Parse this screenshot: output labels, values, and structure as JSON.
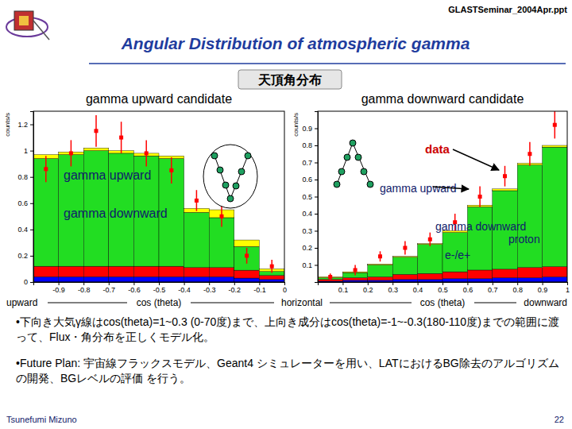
{
  "slide": {
    "file": "GLASTSeminar_2004Apr.ppt",
    "title": "Angular Distribution of atmospheric gamma",
    "tab": "天頂角分布",
    "axis_notes": [
      "upward",
      "horizontal",
      "downward"
    ],
    "bullets": [
      "•下向き大気γ線はcos(theta)=1~0.3 (0-70度)まで、上向き成分はcos(theta)=-1~-0.3(180-110度)までの範囲に渡って、Flux・角分布を正しくモデル化。",
      "•Future Plan: 宇宙線フラックスモデル、Geant4 シミュレーターを用い、LATにおけるBG除去のアルゴリズムの開発、BGレベルの評価 を行う。"
    ],
    "author": "Tsunefumi Mizuno",
    "page": 22
  },
  "chart_data": [
    {
      "type": "histogram",
      "title": "gamma upward candidate",
      "xlabel": "cos (theta)",
      "ylabel": "counts/s",
      "stacked": true,
      "grid": false,
      "bins": [
        -1,
        -0.9,
        -0.8,
        -0.7,
        -0.6,
        -0.5,
        -0.4,
        -0.3,
        -0.2,
        -0.1,
        0
      ],
      "xlim": [
        -1,
        0
      ],
      "xticks": [
        -0.9,
        -0.8,
        -0.7,
        -0.6,
        -0.5,
        -0.4,
        -0.3,
        -0.2,
        -0.1,
        0
      ],
      "ylim": [
        0,
        1.3
      ],
      "yticks": [
        0,
        0.2,
        0.4,
        0.6,
        0.8,
        1,
        1.2
      ],
      "series": [
        {
          "color": "#0000ff",
          "values": [
            0.04,
            0.04,
            0.04,
            0.04,
            0.04,
            0.04,
            0.04,
            0.04,
            0.03,
            0.02
          ]
        },
        {
          "color": "#ff0000",
          "values": [
            0.08,
            0.08,
            0.08,
            0.08,
            0.08,
            0.08,
            0.07,
            0.07,
            0.06,
            0.03
          ]
        },
        {
          "name": "gamma upward",
          "color": "#22dd22",
          "values": [
            0.82,
            0.85,
            0.88,
            0.86,
            0.84,
            0.82,
            0.42,
            0.38,
            0.18,
            0.03
          ]
        },
        {
          "name": "gamma downward",
          "color": "#ffff00",
          "values": [
            0.03,
            0.02,
            0.02,
            0.02,
            0.02,
            0.02,
            0.03,
            0.06,
            0.05,
            0.02
          ]
        }
      ],
      "points": {
        "color": "#ff0000",
        "marker": "square",
        "x": [
          -0.95,
          -0.85,
          -0.75,
          -0.65,
          -0.55,
          -0.45,
          -0.35,
          -0.25,
          -0.15,
          -0.05
        ],
        "values": [
          0.86,
          0.98,
          1.15,
          1.1,
          0.98,
          0.85,
          0.62,
          0.5,
          0.2,
          0.12
        ],
        "errors": [
          0.1,
          0.1,
          0.12,
          0.12,
          0.1,
          0.1,
          0.08,
          0.08,
          0.06,
          0.05
        ]
      }
    },
    {
      "type": "histogram",
      "title": "gamma downward candidate",
      "xlabel": "cos (theta)",
      "ylabel": "counts/s",
      "stacked": true,
      "grid": false,
      "bins": [
        0,
        0.1,
        0.2,
        0.3,
        0.4,
        0.5,
        0.6,
        0.7,
        0.8,
        0.9,
        1
      ],
      "xlim": [
        0,
        1
      ],
      "xticks": [
        0.1,
        0.2,
        0.3,
        0.4,
        0.5,
        0.6,
        0.7,
        0.8,
        0.9,
        1
      ],
      "ylim": [
        0,
        1
      ],
      "yticks": [
        0.1,
        0.2,
        0.3,
        0.4,
        0.5,
        0.6,
        0.7,
        0.8,
        0.9
      ],
      "series": [
        {
          "name": "proton",
          "color": "#0000ff",
          "values": [
            0.005,
            0.01,
            0.01,
            0.015,
            0.015,
            0.02,
            0.02,
            0.025,
            0.025,
            0.03
          ]
        },
        {
          "name": "e-/e+",
          "color": "#ff0000",
          "values": [
            0.01,
            0.015,
            0.02,
            0.03,
            0.035,
            0.04,
            0.05,
            0.05,
            0.06,
            0.06
          ]
        },
        {
          "name": "gamma downward",
          "color": "#22dd22",
          "values": [
            0.01,
            0.03,
            0.07,
            0.1,
            0.17,
            0.23,
            0.37,
            0.46,
            0.6,
            0.7
          ]
        },
        {
          "name": "gamma upward",
          "color": "#ffff00",
          "values": [
            0.005,
            0.005,
            0.005,
            0.005,
            0.005,
            0.01,
            0.01,
            0.01,
            0.01,
            0.01
          ]
        }
      ],
      "points": {
        "name": "data",
        "color": "#ff0000",
        "marker": "square",
        "x": [
          0.05,
          0.15,
          0.25,
          0.35,
          0.45,
          0.55,
          0.65,
          0.75,
          0.85,
          0.95
        ],
        "values": [
          0.03,
          0.07,
          0.15,
          0.2,
          0.25,
          0.35,
          0.5,
          0.62,
          0.75,
          0.92
        ],
        "errors": [
          0.02,
          0.03,
          0.03,
          0.04,
          0.04,
          0.05,
          0.06,
          0.06,
          0.07,
          0.08
        ]
      }
    }
  ]
}
